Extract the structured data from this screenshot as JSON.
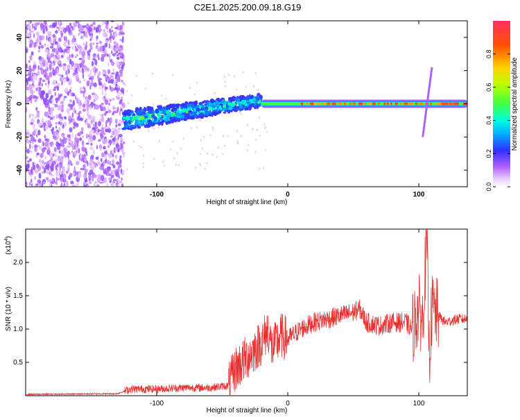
{
  "title": "C2E1.2025.200.09.18.G19",
  "colors": {
    "snr_line": "#e83030",
    "spec_bg": "#ffffff"
  },
  "chart_data": [
    {
      "type": "heatmap",
      "xlabel": "Height of straight line (km)",
      "ylabel": "Frequency (Hz)",
      "xlim": [
        -200,
        137
      ],
      "ylim": [
        -50,
        50
      ],
      "x_ticks": [
        -100,
        0,
        100
      ],
      "y_ticks": [
        -40,
        -20,
        0,
        20,
        40
      ],
      "colorbar": {
        "label": "Normalized spectral amplitude",
        "range": [
          0.0,
          1.0
        ],
        "ticks": [
          0.0,
          0.2,
          0.4,
          0.6,
          0.8
        ],
        "colormap": "rainbow (magenta-blue-cyan-green-yellow-red)"
      },
      "features": [
        {
          "description_key": "noise",
          "x_range": [
            -200,
            -125
          ],
          "freq_range": [
            -50,
            50
          ],
          "amplitude": 0.1
        },
        {
          "description_key": "signal_wandering",
          "x_range": [
            -125,
            -20
          ],
          "freq_range": [
            -12,
            6
          ],
          "amplitude": 0.45
        },
        {
          "description_key": "signal_steady",
          "x_range": [
            -20,
            137
          ],
          "freq_center": 0,
          "amplitude": 0.9
        }
      ]
    },
    {
      "type": "line",
      "xlabel": "Height of straight line (km)",
      "ylabel": "SNR (10 * v/v)",
      "y_multiplier": "(x10",
      "y_multiplier_exp": "4",
      "xlim": [
        -200,
        137
      ],
      "ylim": [
        0,
        2.5
      ],
      "x_ticks": [
        -100,
        0,
        100
      ],
      "y_ticks": [
        0.5,
        1.0,
        1.5,
        2.0
      ],
      "series": [
        {
          "x": [
            -200,
            -130,
            -120,
            -100,
            -80,
            -60,
            -45,
            -40,
            -30,
            -20,
            -15,
            -12,
            -5,
            0,
            10,
            20,
            30,
            40,
            50,
            55,
            60,
            70,
            80,
            90,
            95,
            100,
            103,
            106,
            108,
            110,
            115,
            120,
            130,
            137
          ],
          "y": [
            0.02,
            0.03,
            0.1,
            0.1,
            0.12,
            0.12,
            0.15,
            0.4,
            0.6,
            0.8,
            1.0,
            0.7,
            0.9,
            0.85,
            1.0,
            1.1,
            1.15,
            1.2,
            1.25,
            1.3,
            1.1,
            1.05,
            1.1,
            1.1,
            1.0,
            1.3,
            1.1,
            2.4,
            0.6,
            1.3,
            1.2,
            1.1,
            1.15,
            1.15
          ]
        }
      ]
    }
  ]
}
